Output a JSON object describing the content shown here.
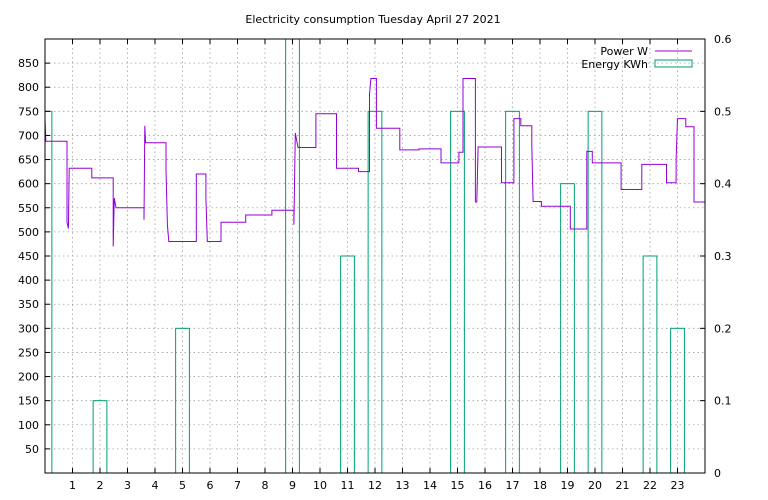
{
  "chart_data": {
    "type": "line",
    "title": "Electricity consumption Tuesday April 27 2021",
    "xlabel": "",
    "ylabel": "",
    "y2label": "",
    "xlim": [
      0,
      24
    ],
    "ylim": [
      0,
      900
    ],
    "y2lim": [
      0,
      0.6
    ],
    "xticks": [
      1,
      2,
      3,
      4,
      5,
      6,
      7,
      8,
      9,
      10,
      11,
      12,
      13,
      14,
      15,
      16,
      17,
      18,
      19,
      20,
      21,
      22,
      23
    ],
    "yticks": [
      50,
      100,
      150,
      200,
      250,
      300,
      350,
      400,
      450,
      500,
      550,
      600,
      650,
      700,
      750,
      800,
      850
    ],
    "y2ticks": [
      "0",
      "0.1",
      "0.2",
      "0.3",
      "0.4",
      "0.5",
      "0.6"
    ],
    "grid": true,
    "legend_position": "top-right",
    "series": [
      {
        "name": "Power W",
        "axis": "y1",
        "color": "#9400d3",
        "style": "step",
        "points": [
          [
            0,
            735
          ],
          [
            0.03,
            688
          ],
          [
            0.8,
            688
          ],
          [
            0.8,
            520
          ],
          [
            0.85,
            507
          ],
          [
            0.88,
            632
          ],
          [
            1.7,
            632
          ],
          [
            1.7,
            612
          ],
          [
            2.48,
            612
          ],
          [
            2.48,
            470
          ],
          [
            2.52,
            570
          ],
          [
            2.58,
            550
          ],
          [
            3.6,
            550
          ],
          [
            3.6,
            525
          ],
          [
            3.63,
            720
          ],
          [
            3.66,
            685
          ],
          [
            4.4,
            685
          ],
          [
            4.4,
            628
          ],
          [
            4.45,
            515
          ],
          [
            4.5,
            480
          ],
          [
            5.5,
            480
          ],
          [
            5.5,
            620
          ],
          [
            5.85,
            620
          ],
          [
            5.85,
            570
          ],
          [
            5.9,
            480
          ],
          [
            6.4,
            480
          ],
          [
            6.4,
            520
          ],
          [
            7.3,
            520
          ],
          [
            7.3,
            535
          ],
          [
            8.25,
            535
          ],
          [
            8.25,
            545
          ],
          [
            9.05,
            545
          ],
          [
            9.05,
            515
          ],
          [
            9.1,
            705
          ],
          [
            9.2,
            675
          ],
          [
            9.85,
            675
          ],
          [
            9.85,
            745
          ],
          [
            10.6,
            745
          ],
          [
            10.6,
            632
          ],
          [
            11.4,
            632
          ],
          [
            11.4,
            625
          ],
          [
            11.8,
            625
          ],
          [
            11.8,
            785
          ],
          [
            11.85,
            818
          ],
          [
            12.05,
            818
          ],
          [
            12.05,
            715
          ],
          [
            12.9,
            715
          ],
          [
            12.9,
            670
          ],
          [
            13.6,
            670
          ],
          [
            13.6,
            672
          ],
          [
            14.4,
            672
          ],
          [
            14.4,
            643
          ],
          [
            15.05,
            643
          ],
          [
            15.05,
            665
          ],
          [
            15.2,
            665
          ],
          [
            15.2,
            818
          ],
          [
            15.65,
            818
          ],
          [
            15.65,
            562
          ],
          [
            15.7,
            562
          ],
          [
            15.75,
            676
          ],
          [
            16.6,
            676
          ],
          [
            16.6,
            602
          ],
          [
            17.05,
            602
          ],
          [
            17.05,
            735
          ],
          [
            17.3,
            735
          ],
          [
            17.3,
            720
          ],
          [
            17.7,
            720
          ],
          [
            17.7,
            680
          ],
          [
            17.75,
            563
          ],
          [
            18.05,
            563
          ],
          [
            18.05,
            553
          ],
          [
            19.1,
            553
          ],
          [
            19.1,
            506
          ],
          [
            19.7,
            506
          ],
          [
            19.7,
            667
          ],
          [
            19.9,
            667
          ],
          [
            19.9,
            643
          ],
          [
            20.95,
            643
          ],
          [
            20.95,
            588
          ],
          [
            21.7,
            588
          ],
          [
            21.7,
            640
          ],
          [
            22.6,
            640
          ],
          [
            22.6,
            602
          ],
          [
            22.95,
            602
          ],
          [
            22.95,
            650
          ],
          [
            23.0,
            735
          ],
          [
            23.3,
            735
          ],
          [
            23.3,
            718
          ],
          [
            23.6,
            718
          ],
          [
            23.6,
            562
          ],
          [
            24,
            562
          ]
        ]
      },
      {
        "name": "Energy KWh",
        "axis": "y2",
        "color": "#009e73",
        "style": "bars",
        "bars": [
          {
            "x": 0,
            "value": 0.5
          },
          {
            "x": 2,
            "value": 0.1
          },
          {
            "x": 5,
            "value": 0.2
          },
          {
            "x": 9,
            "value": 0.6
          },
          {
            "x": 11,
            "value": 0.3
          },
          {
            "x": 12,
            "value": 0.5
          },
          {
            "x": 15,
            "value": 0.5
          },
          {
            "x": 17,
            "value": 0.5
          },
          {
            "x": 19,
            "value": 0.4
          },
          {
            "x": 20,
            "value": 0.5
          },
          {
            "x": 22,
            "value": 0.3
          },
          {
            "x": 23,
            "value": 0.2
          }
        ]
      }
    ]
  }
}
